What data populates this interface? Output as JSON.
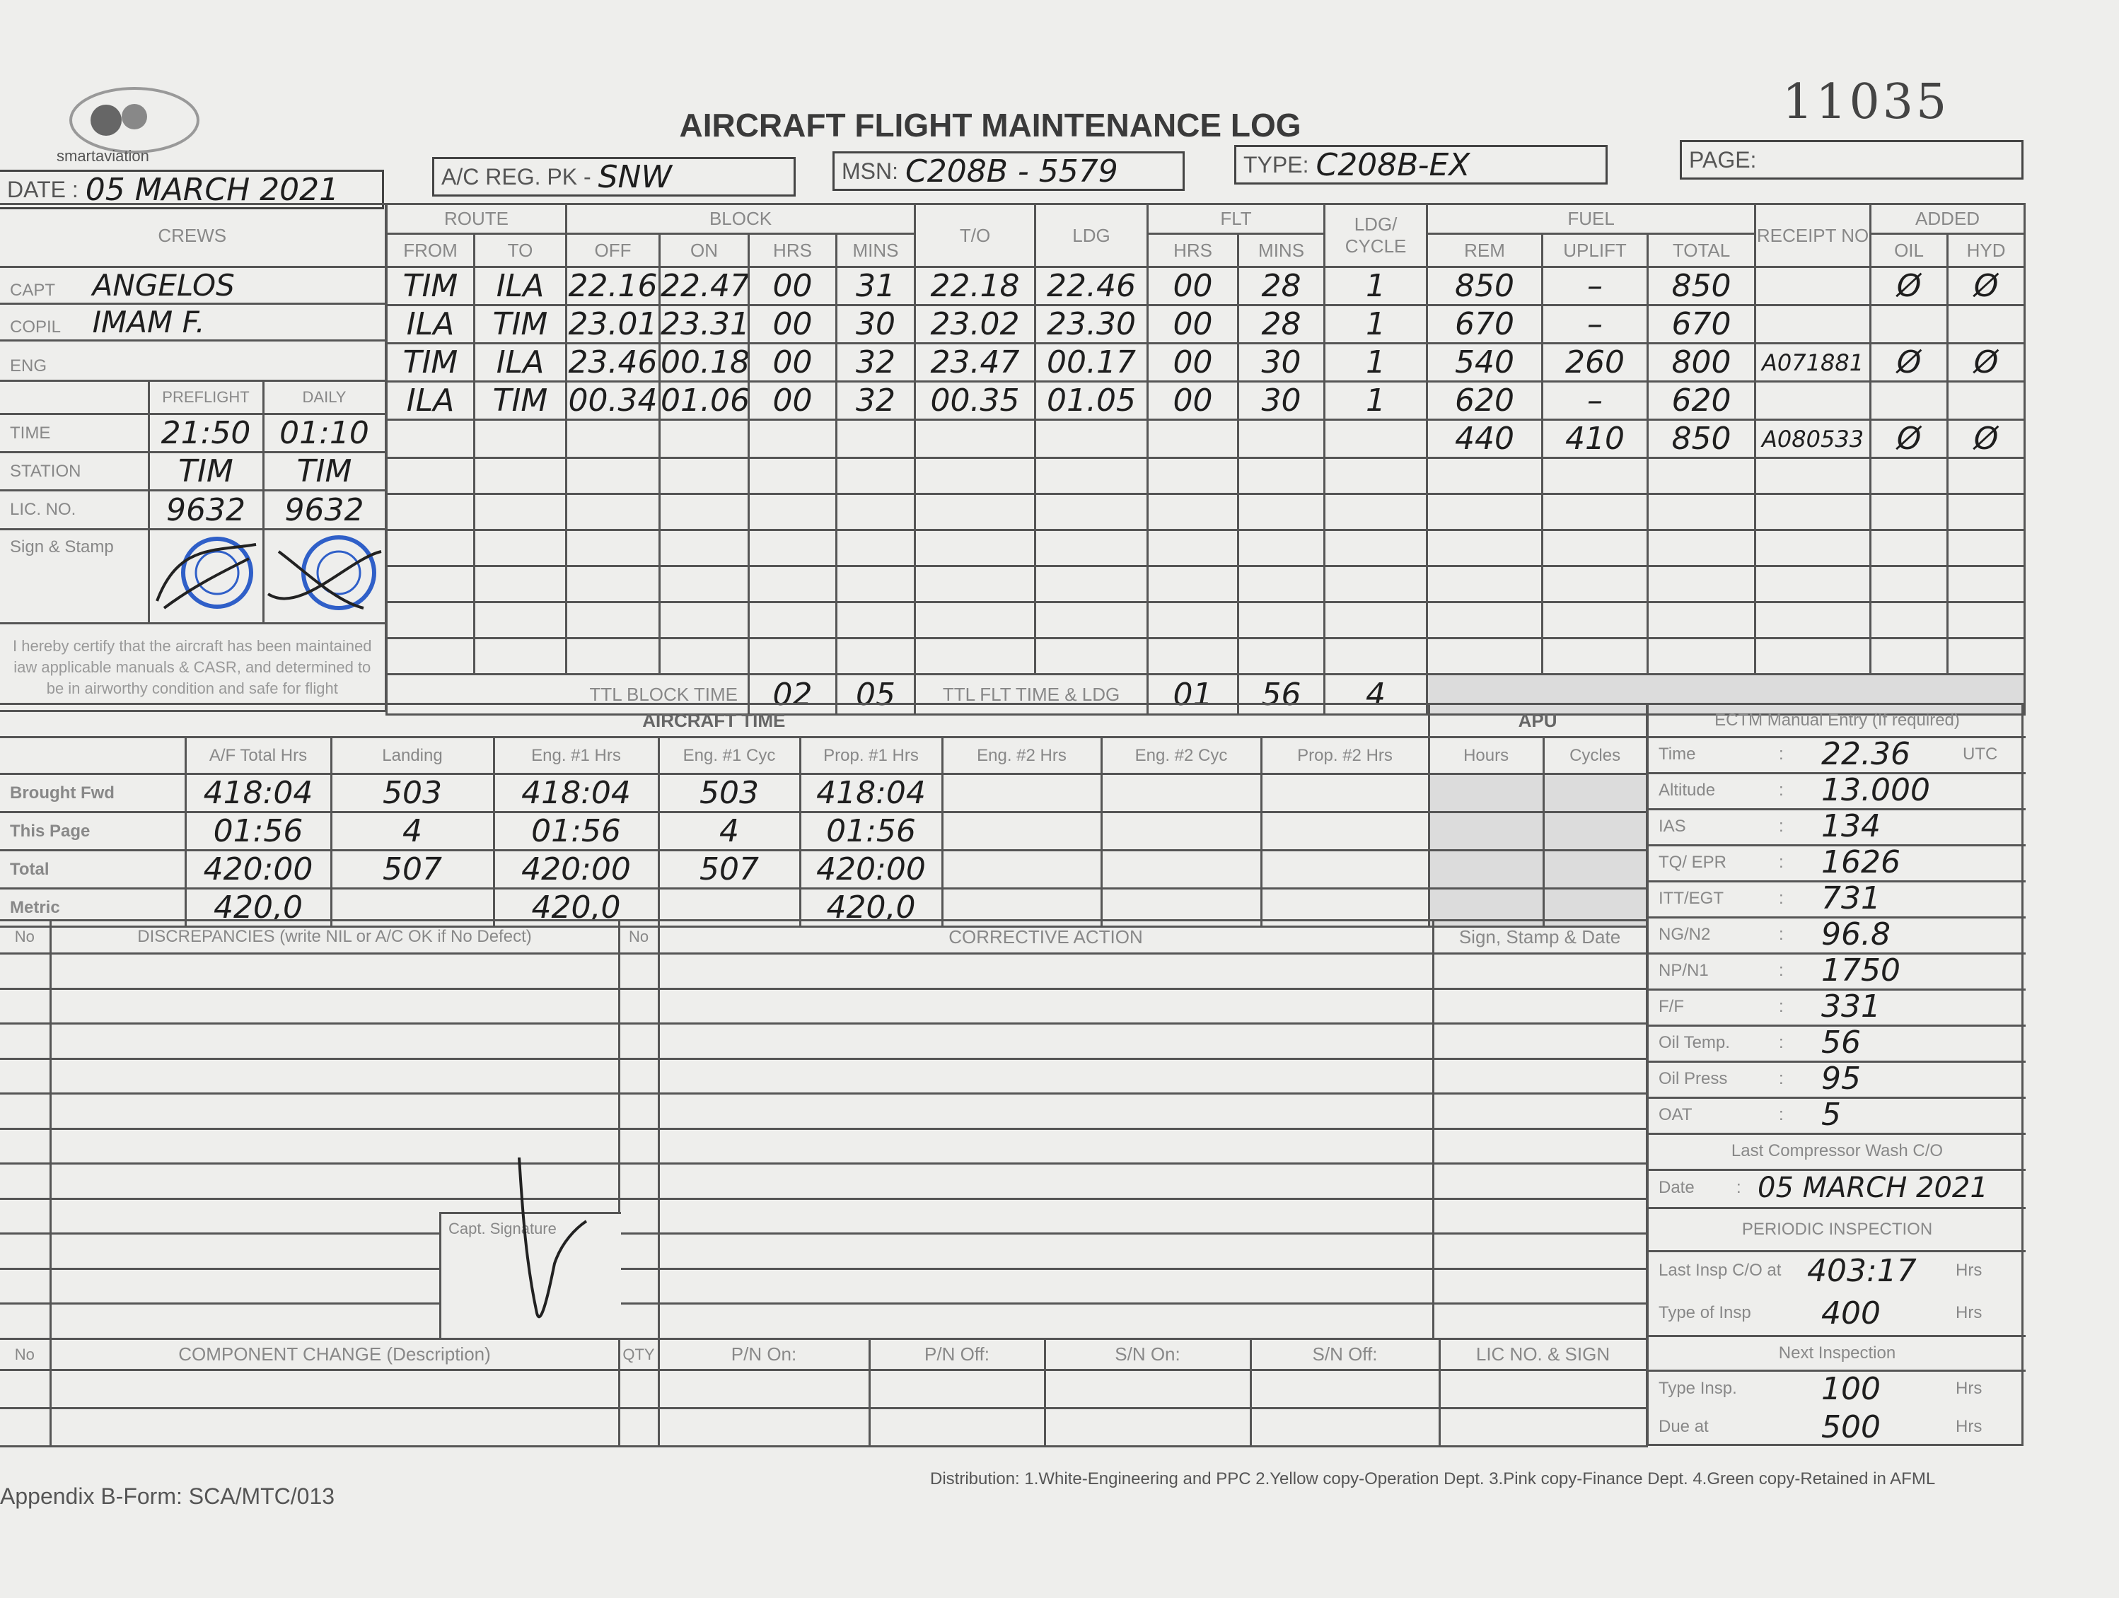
{
  "header": {
    "logo_text": "smartaviation",
    "title": "AIRCRAFT FLIGHT MAINTENANCE LOG",
    "form_number": "11035",
    "date_label": "DATE :",
    "date": "05 MARCH 2021",
    "reg_label": "A/C REG. PK -",
    "reg": "SNW",
    "msn_label": "MSN:",
    "msn": "C208B - 5579",
    "type_label": "TYPE:",
    "type": "C208B-EX",
    "page_label": "PAGE:",
    "page": ""
  },
  "crew": {
    "title": "CREWS",
    "capt_label": "CAPT",
    "capt": "ANGELOS",
    "copil_label": "COPIL",
    "copil": "IMAM F.",
    "eng_label": "ENG",
    "eng": "",
    "colon": ":",
    "preflight_label": "PREFLIGHT",
    "daily_label": "DAILY",
    "time_label": "TIME",
    "station_label": "STATION",
    "lic_label": "LIC. NO.",
    "sign_label": "Sign & Stamp",
    "preflight": {
      "time": "21:50",
      "station": "TIM",
      "lic": "9632"
    },
    "daily": {
      "time": "01:10",
      "station": "TIM",
      "lic": "9632"
    },
    "certify": "I hereby certify that the aircraft has been maintained iaw applicable manuals & CASR, and determined to be in airworthy condition and safe for flight",
    "stamp_color": "#2f5fc8"
  },
  "flights": {
    "headers": {
      "route": "ROUTE",
      "from": "FROM",
      "to": "TO",
      "block": "BLOCK",
      "off": "OFF",
      "on": "ON",
      "hrs": "HRS",
      "mins": "MINS",
      "to_time": "T/O",
      "ldg": "LDG",
      "flt": "FLT",
      "flt_hrs": "HRS",
      "flt_mins": "MINS",
      "cycle": "LDG/ CYCLE",
      "fuel": "FUEL",
      "rem": "REM",
      "uplift": "UPLIFT",
      "total": "TOTAL",
      "receipt": "RECEIPT NO",
      "added": "ADDED",
      "oil": "OIL",
      "hyd": "HYD"
    },
    "rows": [
      {
        "from": "TIM",
        "to": "ILA",
        "off": "22.16",
        "on": "22.47",
        "hrs": "00",
        "mins": "31",
        "to_time": "22.18",
        "ldg": "22.46",
        "flt_hrs": "00",
        "flt_mins": "28",
        "cycle": "1",
        "rem": "850",
        "uplift": "–",
        "total": "850",
        "receipt": "",
        "oil": "Ø",
        "hyd": "Ø"
      },
      {
        "from": "ILA",
        "to": "TIM",
        "off": "23.01",
        "on": "23.31",
        "hrs": "00",
        "mins": "30",
        "to_time": "23.02",
        "ldg": "23.30",
        "flt_hrs": "00",
        "flt_mins": "28",
        "cycle": "1",
        "rem": "670",
        "uplift": "–",
        "total": "670",
        "receipt": "",
        "oil": "",
        "hyd": ""
      },
      {
        "from": "TIM",
        "to": "ILA",
        "off": "23.46",
        "on": "00.18",
        "hrs": "00",
        "mins": "32",
        "to_time": "23.47",
        "ldg": "00.17",
        "flt_hrs": "00",
        "flt_mins": "30",
        "cycle": "1",
        "rem": "540",
        "uplift": "260",
        "total": "800",
        "receipt": "A071881",
        "oil": "Ø",
        "hyd": "Ø"
      },
      {
        "from": "ILA",
        "to": "TIM",
        "off": "00.34",
        "on": "01.06",
        "hrs": "00",
        "mins": "32",
        "to_time": "00.35",
        "ldg": "01.05",
        "flt_hrs": "00",
        "flt_mins": "30",
        "cycle": "1",
        "rem": "620",
        "uplift": "–",
        "total": "620",
        "receipt": "",
        "oil": "",
        "hyd": ""
      },
      {
        "from": "",
        "to": "",
        "off": "",
        "on": "",
        "hrs": "",
        "mins": "",
        "to_time": "",
        "ldg": "",
        "flt_hrs": "",
        "flt_mins": "",
        "cycle": "",
        "rem": "440",
        "uplift": "410",
        "total": "850",
        "receipt": "A080533",
        "oil": "Ø",
        "hyd": "Ø"
      }
    ],
    "totals": {
      "block_label": "TTL BLOCK TIME",
      "block_hrs": "02",
      "block_mins": "05",
      "flt_label": "TTL FLT TIME & LDG",
      "flt_hrs": "01",
      "flt_mins": "56",
      "ldg": "4"
    }
  },
  "aircraft_time": {
    "title": "AIRCRAFT TIME",
    "columns": [
      "A/F Total Hrs",
      "Landing",
      "Eng. #1 Hrs",
      "Eng. #1 Cyc",
      "Prop. #1 Hrs",
      "Eng. #2 Hrs",
      "Eng. #2 Cyc",
      "Prop. #2 Hrs"
    ],
    "rows": [
      {
        "label": "Brought Fwd",
        "values": [
          "418:04",
          "503",
          "418:04",
          "503",
          "418:04",
          "",
          "",
          ""
        ]
      },
      {
        "label": "This Page",
        "values": [
          "01:56",
          "4",
          "01:56",
          "4",
          "01:56",
          "",
          "",
          ""
        ]
      },
      {
        "label": "Total",
        "values": [
          "420:00",
          "507",
          "420:00",
          "507",
          "420:00",
          "",
          "",
          ""
        ]
      },
      {
        "label": "Metric",
        "values": [
          "420,0",
          "",
          "420,0",
          "",
          "420,0",
          "",
          "",
          ""
        ]
      }
    ],
    "apu": {
      "title": "APU",
      "hours": "Hours",
      "cycles": "Cycles"
    }
  },
  "ectm": {
    "title": "ECTM Manual Entry (If required)",
    "items": [
      {
        "label": "Time",
        "value": "22.36",
        "unit": "UTC"
      },
      {
        "label": "Altitude",
        "value": "13.000",
        "unit": ""
      },
      {
        "label": "IAS",
        "value": "134",
        "unit": ""
      },
      {
        "label": "TQ/ EPR",
        "value": "1626",
        "unit": ""
      },
      {
        "label": "ITT/EGT",
        "value": "731",
        "unit": ""
      },
      {
        "label": "NG/N2",
        "value": "96.8",
        "unit": ""
      },
      {
        "label": "NP/N1",
        "value": "1750",
        "unit": ""
      },
      {
        "label": "F/F",
        "value": "331",
        "unit": ""
      },
      {
        "label": "Oil Temp.",
        "value": "56",
        "unit": ""
      },
      {
        "label": "Oil Press",
        "value": "95",
        "unit": ""
      },
      {
        "label": "OAT",
        "value": "5",
        "unit": ""
      }
    ],
    "wash_title": "Last Compressor Wash C/O",
    "wash_date_label": "Date",
    "wash_date": "05 MARCH 2021",
    "periodic_title": "PERIODIC INSPECTION",
    "last_insp_label": "Last Insp C/O at",
    "last_insp": "403:17",
    "type_insp_label": "Type of Insp",
    "type_insp": "400",
    "next_title": "Next Inspection",
    "next_type_label": "Type Insp.",
    "next_type": "100",
    "due_label": "Due at",
    "due": "500",
    "hrs": "Hrs"
  },
  "discrepancies": {
    "no": "No",
    "discrepancy_header": "DISCREPANCIES (write NIL or A/C OK if No Defect)",
    "action_no": "No",
    "action_header": "CORRECTIVE ACTION",
    "sign_header": "Sign, Stamp & Date",
    "capt_signature": "Capt. Signature"
  },
  "component_change": {
    "no": "No",
    "description": "COMPONENT CHANGE (Description)",
    "qty": "QTY",
    "pn_on": "P/N On:",
    "pn_off": "P/N Off:",
    "sn_on": "S/N On:",
    "sn_off": "S/N Off:",
    "lic": "LIC NO. & SIGN"
  },
  "footer": {
    "form_ref": "Appendix B-Form: SCA/MTC/013",
    "distribution": "Distribution: 1.White-Engineering and PPC  2.Yellow copy-Operation Dept.  3.Pink copy-Finance Dept.  4.Green copy-Retained in AFML"
  }
}
